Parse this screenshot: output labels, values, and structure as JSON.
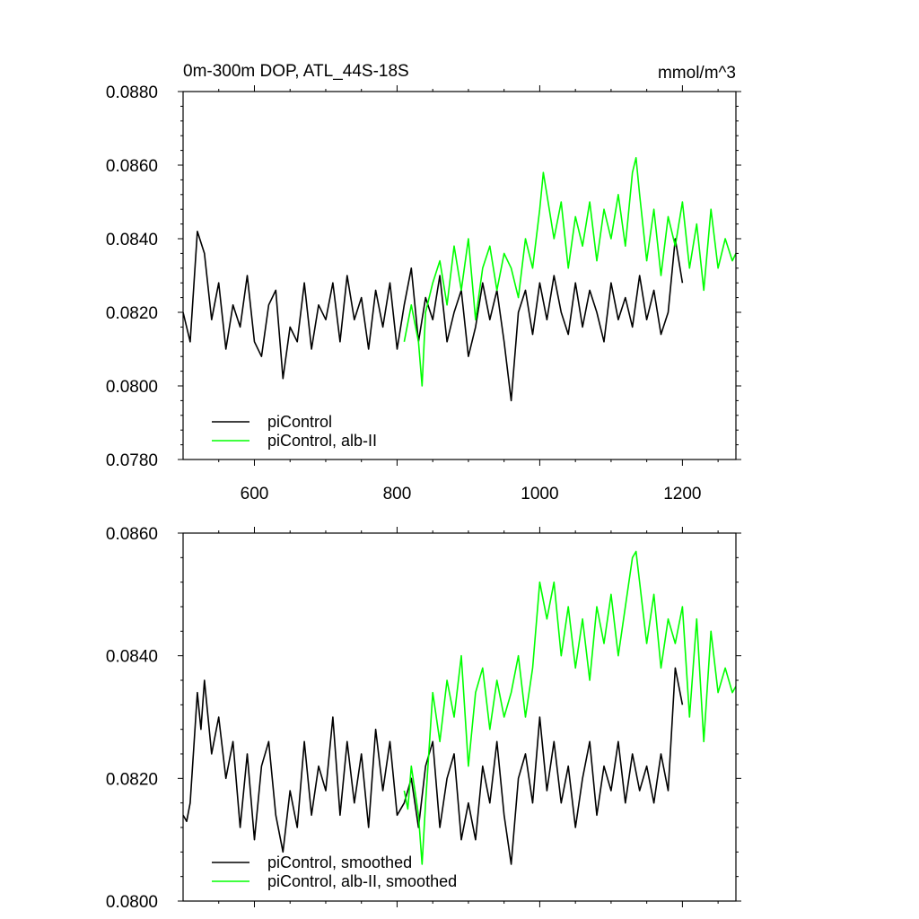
{
  "chart_data": [
    {
      "type": "line",
      "title": "0m-300m DOP, ATL_44S-18S",
      "units": "mmol/m^3",
      "xlim": [
        500,
        1275
      ],
      "ylim": [
        0.078,
        0.088
      ],
      "xticks": [
        600,
        800,
        1000,
        1200
      ],
      "xtick_labels": [
        "600",
        "800",
        "1000",
        "1200"
      ],
      "yticks": [
        0.078,
        0.08,
        0.082,
        0.084,
        0.086,
        0.088
      ],
      "ytick_labels": [
        "0.0780",
        "0.0800",
        "0.0820",
        "0.0840",
        "0.0860",
        "0.0880"
      ],
      "legend_position": "bottom-left",
      "series": [
        {
          "name": "piControl",
          "color": "#000000",
          "x": [
            500,
            510,
            520,
            530,
            540,
            550,
            560,
            570,
            580,
            590,
            600,
            610,
            620,
            630,
            640,
            650,
            660,
            670,
            680,
            690,
            700,
            710,
            720,
            730,
            740,
            750,
            760,
            770,
            780,
            790,
            800,
            810,
            820,
            830,
            840,
            850,
            860,
            870,
            880,
            890,
            900,
            910,
            920,
            930,
            940,
            950,
            960,
            970,
            980,
            990,
            1000,
            1010,
            1020,
            1030,
            1040,
            1050,
            1060,
            1070,
            1080,
            1090,
            1100,
            1110,
            1120,
            1130,
            1140,
            1150,
            1160,
            1170,
            1180,
            1190,
            1200
          ],
          "values": [
            0.082,
            0.0812,
            0.0842,
            0.0836,
            0.0818,
            0.0828,
            0.081,
            0.0822,
            0.0816,
            0.083,
            0.0812,
            0.0808,
            0.0822,
            0.0826,
            0.0802,
            0.0816,
            0.0812,
            0.0828,
            0.081,
            0.0822,
            0.0818,
            0.0828,
            0.0812,
            0.083,
            0.0818,
            0.0824,
            0.081,
            0.0826,
            0.0816,
            0.0828,
            0.081,
            0.0822,
            0.0832,
            0.0812,
            0.0824,
            0.0818,
            0.083,
            0.0812,
            0.082,
            0.0826,
            0.0808,
            0.0816,
            0.0828,
            0.0818,
            0.0826,
            0.0812,
            0.0796,
            0.082,
            0.0826,
            0.0814,
            0.0828,
            0.0818,
            0.083,
            0.082,
            0.0814,
            0.0828,
            0.0816,
            0.0826,
            0.082,
            0.0812,
            0.0828,
            0.0818,
            0.0824,
            0.0816,
            0.083,
            0.0818,
            0.0826,
            0.0814,
            0.082,
            0.084,
            0.0828
          ]
        },
        {
          "name": "piControl, alb-II",
          "color": "#00ff00",
          "x": [
            810,
            820,
            830,
            835,
            840,
            850,
            860,
            870,
            880,
            890,
            900,
            910,
            920,
            930,
            940,
            950,
            960,
            970,
            980,
            990,
            1000,
            1005,
            1010,
            1020,
            1030,
            1040,
            1050,
            1060,
            1070,
            1080,
            1090,
            1100,
            1110,
            1120,
            1130,
            1135,
            1140,
            1150,
            1160,
            1170,
            1180,
            1190,
            1200,
            1210,
            1220,
            1230,
            1240,
            1250,
            1260,
            1270,
            1275
          ],
          "values": [
            0.0812,
            0.0822,
            0.0812,
            0.08,
            0.082,
            0.0828,
            0.0834,
            0.0822,
            0.0838,
            0.0826,
            0.084,
            0.0818,
            0.0832,
            0.0838,
            0.0826,
            0.0836,
            0.0832,
            0.0824,
            0.084,
            0.0832,
            0.0848,
            0.0858,
            0.0852,
            0.084,
            0.085,
            0.0832,
            0.0846,
            0.0838,
            0.085,
            0.0834,
            0.0848,
            0.084,
            0.0852,
            0.0838,
            0.0858,
            0.0862,
            0.0852,
            0.0834,
            0.0848,
            0.083,
            0.0846,
            0.0838,
            0.085,
            0.0832,
            0.0844,
            0.0826,
            0.0848,
            0.0832,
            0.084,
            0.0834,
            0.0836
          ]
        }
      ],
      "legend": [
        "piControl",
        "piControl, alb-II"
      ]
    },
    {
      "type": "line",
      "title": "",
      "units": "",
      "xlim": [
        500,
        1275
      ],
      "ylim": [
        0.08,
        0.086
      ],
      "xticks": [
        600,
        800,
        1000,
        1200
      ],
      "xtick_labels": [],
      "yticks": [
        0.08,
        0.082,
        0.084,
        0.086
      ],
      "ytick_labels": [
        "0.0800",
        "0.0820",
        "0.0840",
        "0.0860"
      ],
      "legend_position": "bottom-left",
      "series": [
        {
          "name": "piControl, smoothed",
          "color": "#000000",
          "x": [
            500,
            505,
            510,
            520,
            525,
            530,
            540,
            550,
            560,
            570,
            580,
            590,
            600,
            610,
            620,
            630,
            640,
            650,
            660,
            670,
            680,
            690,
            700,
            710,
            720,
            730,
            740,
            750,
            760,
            770,
            780,
            790,
            800,
            810,
            820,
            830,
            840,
            850,
            860,
            870,
            880,
            890,
            900,
            910,
            920,
            930,
            940,
            950,
            960,
            970,
            980,
            990,
            1000,
            1010,
            1020,
            1030,
            1040,
            1050,
            1060,
            1070,
            1080,
            1090,
            1100,
            1110,
            1120,
            1130,
            1140,
            1150,
            1160,
            1170,
            1180,
            1190,
            1200
          ],
          "values": [
            0.0814,
            0.0813,
            0.0816,
            0.0834,
            0.0828,
            0.0836,
            0.0824,
            0.083,
            0.082,
            0.0826,
            0.0812,
            0.0824,
            0.081,
            0.0822,
            0.0826,
            0.0814,
            0.0808,
            0.0818,
            0.0812,
            0.0826,
            0.0814,
            0.0822,
            0.0818,
            0.083,
            0.0814,
            0.0826,
            0.0816,
            0.0824,
            0.0812,
            0.0828,
            0.0818,
            0.0826,
            0.0814,
            0.0816,
            0.082,
            0.0812,
            0.0822,
            0.0826,
            0.0812,
            0.082,
            0.0824,
            0.081,
            0.0816,
            0.081,
            0.0822,
            0.0816,
            0.0826,
            0.0814,
            0.0806,
            0.082,
            0.0824,
            0.0816,
            0.083,
            0.0818,
            0.0826,
            0.0816,
            0.0822,
            0.0812,
            0.082,
            0.0826,
            0.0814,
            0.0822,
            0.0818,
            0.0826,
            0.0816,
            0.0824,
            0.0818,
            0.0822,
            0.0816,
            0.0824,
            0.0818,
            0.0838,
            0.0832
          ]
        },
        {
          "name": "piControl, alb-II, smoothed",
          "color": "#00ff00",
          "x": [
            810,
            815,
            820,
            830,
            835,
            840,
            850,
            860,
            870,
            880,
            890,
            900,
            910,
            920,
            930,
            940,
            950,
            960,
            970,
            980,
            990,
            1000,
            1010,
            1020,
            1030,
            1040,
            1050,
            1060,
            1070,
            1080,
            1090,
            1100,
            1110,
            1120,
            1130,
            1135,
            1140,
            1150,
            1160,
            1170,
            1180,
            1190,
            1200,
            1210,
            1220,
            1230,
            1240,
            1250,
            1260,
            1270,
            1275
          ],
          "values": [
            0.0818,
            0.0815,
            0.0822,
            0.0814,
            0.0806,
            0.0816,
            0.0834,
            0.0826,
            0.0836,
            0.083,
            0.084,
            0.0822,
            0.0834,
            0.0838,
            0.0828,
            0.0836,
            0.083,
            0.0834,
            0.084,
            0.083,
            0.0838,
            0.0852,
            0.0846,
            0.0852,
            0.084,
            0.0848,
            0.0838,
            0.0846,
            0.0836,
            0.0848,
            0.0842,
            0.085,
            0.084,
            0.0848,
            0.0856,
            0.0857,
            0.0852,
            0.0842,
            0.085,
            0.0838,
            0.0846,
            0.0842,
            0.0848,
            0.083,
            0.0846,
            0.0826,
            0.0844,
            0.0834,
            0.0838,
            0.0834,
            0.0835
          ]
        }
      ],
      "legend": [
        "piControl, smoothed",
        "piControl, alb-II, smoothed"
      ]
    }
  ]
}
